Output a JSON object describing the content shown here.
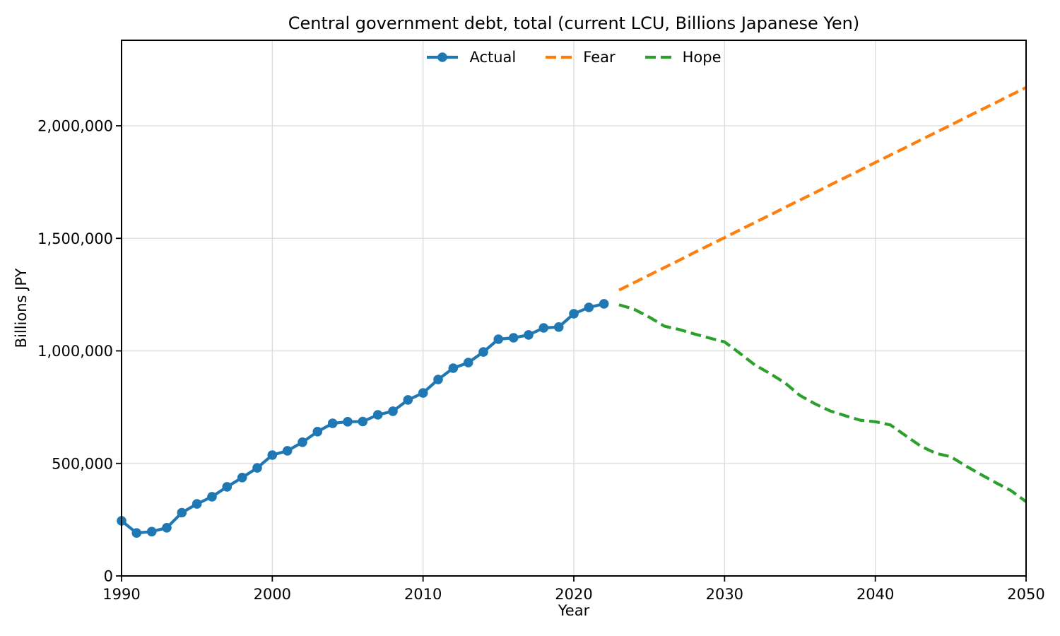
{
  "figure": {
    "title": "Central government debt, total (current LCU, Billions Japanese Yen)",
    "xlabel": "Year",
    "ylabel": "Billions JPY"
  },
  "legend": {
    "position": "upper center",
    "items": [
      {
        "label": "Actual",
        "color": "#1f77b4",
        "style": "solid-line-with-circle-marker"
      },
      {
        "label": "Fear",
        "color": "#ff7f0e",
        "style": "dashed"
      },
      {
        "label": "Hope",
        "color": "#2ca02c",
        "style": "dashed"
      }
    ]
  },
  "chart_data": {
    "type": "line",
    "title": "Central government debt, total (current LCU, Billions Japanese Yen)",
    "xlabel": "Year",
    "ylabel": "Billions JPY",
    "xlim": [
      1990,
      2050
    ],
    "ylim": [
      0,
      2380000
    ],
    "xticks": [
      1990,
      2000,
      2010,
      2020,
      2030,
      2040,
      2050
    ],
    "yticks": [
      0,
      500000,
      1000000,
      1500000,
      2000000
    ],
    "grid": true,
    "grid_color": "#dcdcdc",
    "axis_color": "#000000",
    "legend_position": "upper center",
    "series": [
      {
        "name": "Actual",
        "color": "#1f77b4",
        "line": "solid",
        "marker": "circle",
        "x": [
          1990,
          1991,
          1992,
          1993,
          1994,
          1995,
          1996,
          1997,
          1998,
          1999,
          2000,
          2001,
          2002,
          2003,
          2004,
          2005,
          2006,
          2007,
          2008,
          2009,
          2010,
          2011,
          2012,
          2013,
          2014,
          2015,
          2016,
          2017,
          2018,
          2019,
          2020,
          2021,
          2022
        ],
        "y": [
          245000,
          191000,
          197000,
          214000,
          281000,
          320000,
          352000,
          396000,
          437000,
          480000,
          537000,
          556000,
          594000,
          641000,
          678000,
          685000,
          686000,
          716000,
          732000,
          782000,
          813000,
          873000,
          923000,
          948000,
          995000,
          1052000,
          1058000,
          1071000,
          1102000,
          1106000,
          1165000,
          1193000,
          1209000
        ]
      },
      {
        "name": "Fear",
        "color": "#ff7f0e",
        "line": "dashed",
        "marker": "none",
        "x": [
          2023,
          2024,
          2025,
          2026,
          2027,
          2028,
          2029,
          2030,
          2031,
          2032,
          2033,
          2034,
          2035,
          2036,
          2037,
          2038,
          2039,
          2040,
          2041,
          2042,
          2043,
          2044,
          2045,
          2046,
          2047,
          2048,
          2049,
          2050
        ],
        "y": [
          1270000,
          1303000,
          1337000,
          1370000,
          1403000,
          1437000,
          1470000,
          1503000,
          1537000,
          1570000,
          1603000,
          1637000,
          1670000,
          1703000,
          1737000,
          1770000,
          1803000,
          1837000,
          1870000,
          1903000,
          1937000,
          1970000,
          2003000,
          2037000,
          2070000,
          2103000,
          2137000,
          2170000
        ]
      },
      {
        "name": "Hope",
        "color": "#2ca02c",
        "line": "dashed",
        "marker": "none",
        "x": [
          2023,
          2024,
          2025,
          2026,
          2027,
          2028,
          2029,
          2030,
          2031,
          2032,
          2033,
          2034,
          2035,
          2036,
          2037,
          2038,
          2039,
          2040,
          2041,
          2042,
          2043,
          2044,
          2045,
          2046,
          2047,
          2048,
          2049,
          2050
        ],
        "y": [
          1205000,
          1185000,
          1150000,
          1110000,
          1095000,
          1075000,
          1057000,
          1040000,
          990000,
          938000,
          900000,
          858000,
          802000,
          765000,
          733000,
          712000,
          692000,
          685000,
          671000,
          624000,
          577000,
          545000,
          530000,
          489000,
          451000,
          414000,
          379000,
          330000
        ]
      }
    ]
  }
}
